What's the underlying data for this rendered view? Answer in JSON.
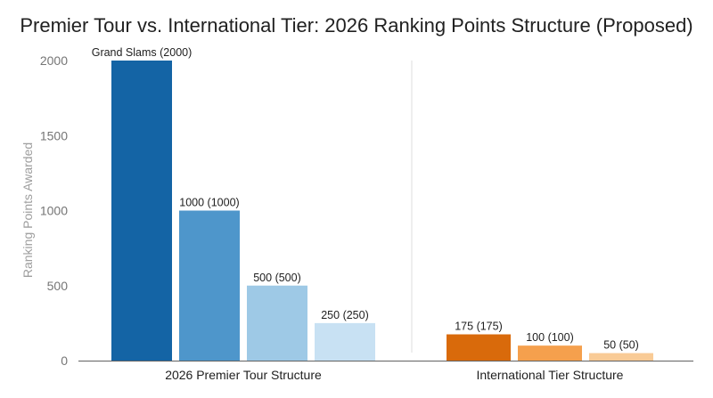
{
  "chart_data": {
    "type": "bar",
    "title": "Premier Tour vs. International Tier: 2026 Ranking Points Structure (Proposed)",
    "ylabel": "Ranking Points Awarded",
    "xlabel": "",
    "ylim": [
      0,
      2000
    ],
    "yticks": [
      "0",
      "500",
      "1000",
      "1500",
      "2000"
    ],
    "grid": false,
    "groups": [
      {
        "name": "2026 Premier Tour Structure",
        "bars": [
          {
            "value": 2000,
            "label": "Grand Slams (2000)",
            "color": "#1464a5"
          },
          {
            "value": 1000,
            "label": "1000 (1000)",
            "color": "#4e96cb"
          },
          {
            "value": 500,
            "label": "500 (500)",
            "color": "#9ec9e6"
          },
          {
            "value": 250,
            "label": "250 (250)",
            "color": "#c8e1f3"
          }
        ]
      },
      {
        "name": "International Tier Structure",
        "bars": [
          {
            "value": 175,
            "label": "175 (175)",
            "color": "#d96a0b"
          },
          {
            "value": 100,
            "label": "100 (100)",
            "color": "#f5a04d"
          },
          {
            "value": 50,
            "label": "50 (50)",
            "color": "#f9cb96"
          }
        ]
      }
    ]
  }
}
